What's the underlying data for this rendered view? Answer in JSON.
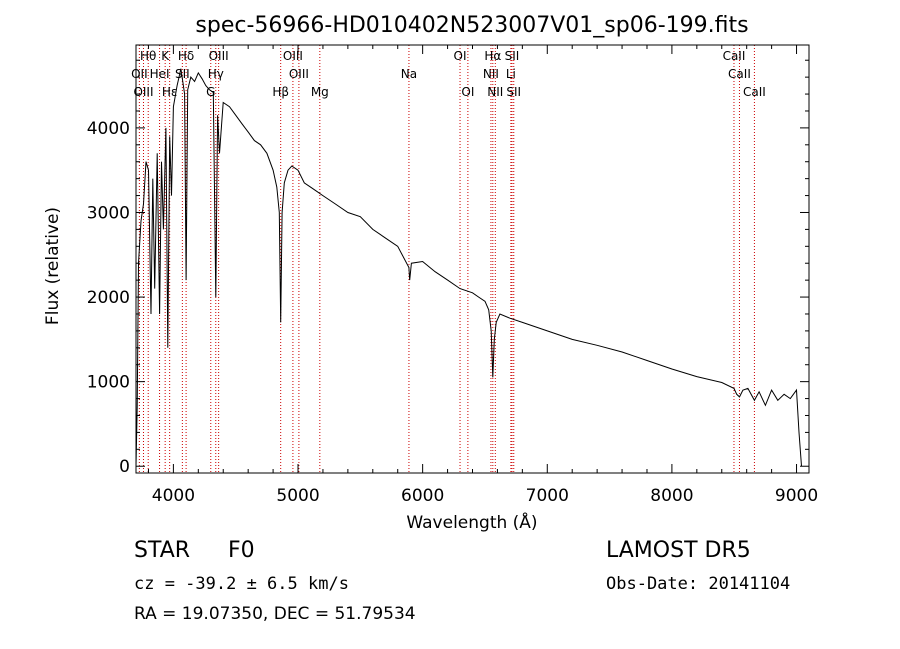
{
  "chart_data": {
    "type": "line",
    "title": "spec-56966-HD010402N523007V01_sp06-199.fits",
    "xlabel": "Wavelength (Å)",
    "ylabel": "Flux (relative)",
    "xlim": [
      3700,
      9100
    ],
    "ylim": [
      -80,
      4980
    ],
    "x_ticks": [
      4000,
      5000,
      6000,
      7000,
      8000,
      9000
    ],
    "y_ticks": [
      0,
      1000,
      2000,
      3000,
      4000
    ],
    "grid": false,
    "series": [
      {
        "x": [
          3700,
          3710,
          3720,
          3740,
          3760,
          3780,
          3800,
          3820,
          3835,
          3850,
          3870,
          3889,
          3905,
          3920,
          3940,
          3955,
          3970,
          3985,
          4000,
          4030,
          4060,
          4090,
          4102,
          4115,
          4140,
          4170,
          4200,
          4230,
          4260,
          4290,
          4320,
          4340,
          4355,
          4370,
          4400,
          4450,
          4500,
          4550,
          4600,
          4650,
          4700,
          4750,
          4800,
          4830,
          4850,
          4861,
          4872,
          4890,
          4920,
          4950,
          5000,
          5050,
          5100,
          5150,
          5200,
          5300,
          5400,
          5500,
          5600,
          5700,
          5800,
          5890,
          5896,
          5910,
          6000,
          6100,
          6200,
          6300,
          6400,
          6450,
          6500,
          6530,
          6550,
          6563,
          6575,
          6590,
          6620,
          6700,
          6800,
          7000,
          7200,
          7400,
          7600,
          7800,
          8000,
          8200,
          8400,
          8498,
          8520,
          8542,
          8570,
          8610,
          8662,
          8700,
          8750,
          8800,
          8850,
          8900,
          8950,
          9000,
          9020,
          9040
        ],
        "y": [
          0,
          700,
          2400,
          2900,
          3100,
          3600,
          3500,
          1800,
          3400,
          2100,
          3700,
          1800,
          3600,
          2800,
          4000,
          1400,
          3900,
          3200,
          4250,
          4500,
          4700,
          4400,
          2200,
          4450,
          4600,
          4550,
          4650,
          4580,
          4500,
          4450,
          4420,
          2000,
          4150,
          3700,
          4300,
          4250,
          4150,
          4050,
          3950,
          3850,
          3800,
          3700,
          3500,
          3300,
          3000,
          1700,
          3000,
          3350,
          3500,
          3550,
          3500,
          3350,
          3300,
          3250,
          3200,
          3100,
          3000,
          2950,
          2800,
          2700,
          2600,
          2350,
          2200,
          2400,
          2420,
          2300,
          2200,
          2100,
          2050,
          2000,
          1950,
          1850,
          1600,
          1050,
          1500,
          1700,
          1800,
          1750,
          1700,
          1600,
          1500,
          1430,
          1350,
          1250,
          1150,
          1060,
          990,
          920,
          850,
          820,
          900,
          920,
          780,
          880,
          720,
          900,
          780,
          850,
          800,
          900,
          400,
          0
        ]
      }
    ],
    "line_labels": [
      {
        "text": "Hθ",
        "wl": 3798,
        "row": 0
      },
      {
        "text": "K",
        "wl": 3934,
        "row": 0
      },
      {
        "text": "Hδ",
        "wl": 4102,
        "row": 0
      },
      {
        "text": "OIII",
        "wl": 4363,
        "row": 0
      },
      {
        "text": "OIII",
        "wl": 4959,
        "row": 0
      },
      {
        "text": "OI",
        "wl": 6300,
        "row": 0
      },
      {
        "text": "Hα",
        "wl": 6563,
        "row": 0
      },
      {
        "text": "SII",
        "wl": 6717,
        "row": 0
      },
      {
        "text": "CaII",
        "wl": 8498,
        "row": 0
      },
      {
        "text": "OII",
        "wl": 3727,
        "row": 1
      },
      {
        "text": "HeI",
        "wl": 3889,
        "row": 1
      },
      {
        "text": "SII",
        "wl": 4072,
        "row": 1
      },
      {
        "text": "Hγ",
        "wl": 4340,
        "row": 1
      },
      {
        "text": "OIII",
        "wl": 5007,
        "row": 1
      },
      {
        "text": "Na",
        "wl": 5890,
        "row": 1
      },
      {
        "text": "NII",
        "wl": 6548,
        "row": 1
      },
      {
        "text": "Li",
        "wl": 6708,
        "row": 1
      },
      {
        "text": "CaII",
        "wl": 8542,
        "row": 1
      },
      {
        "text": "OIII",
        "wl": 3760,
        "row": 2
      },
      {
        "text": "Hε",
        "wl": 3970,
        "row": 2
      },
      {
        "text": "G",
        "wl": 4300,
        "row": 2
      },
      {
        "text": "Hβ",
        "wl": 4861,
        "row": 2
      },
      {
        "text": "Mg",
        "wl": 5175,
        "row": 2
      },
      {
        "text": "OI",
        "wl": 6363,
        "row": 2
      },
      {
        "text": "NII",
        "wl": 6583,
        "row": 2
      },
      {
        "text": "SII",
        "wl": 6731,
        "row": 2
      },
      {
        "text": "CaII",
        "wl": 8662,
        "row": 2
      }
    ],
    "line_color": "#000000",
    "marker_color": "#cc0000"
  },
  "info": {
    "object": "STAR",
    "subclass": "F0",
    "survey": "LAMOST DR5",
    "cz": "cz = -39.2 ± 6.5 km/s",
    "obs_date": "Obs-Date: 20141104",
    "radec": "RA =  19.07350, DEC =  51.79534"
  }
}
